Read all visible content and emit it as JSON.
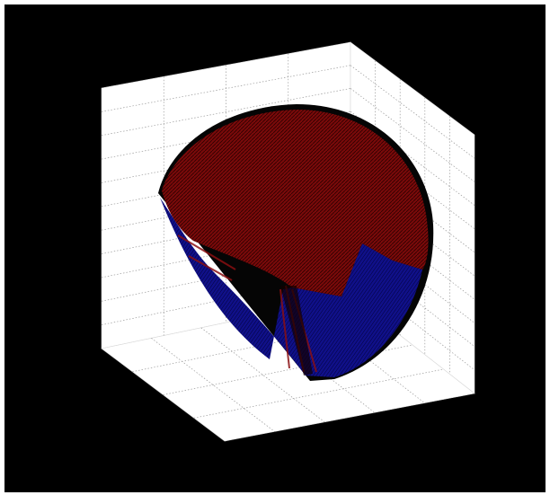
{
  "window": {
    "background_color": "#ffffff",
    "axes_background_color": "#000000"
  },
  "chart_data": {
    "type": "surface3d",
    "title": "",
    "xlabel": "",
    "ylabel": "",
    "zlabel": "",
    "grid": true,
    "grid_style": "dotted",
    "legend": "none",
    "pane_color": "#ffffff",
    "grid_color": "#9a9a9a",
    "surfaces": [
      {
        "part": "cap-outer",
        "color": "#7a0a0a",
        "edge_color": "#2a0000"
      },
      {
        "part": "cut-face",
        "color": "#10108a",
        "edge_color": "#000030"
      }
    ]
  }
}
